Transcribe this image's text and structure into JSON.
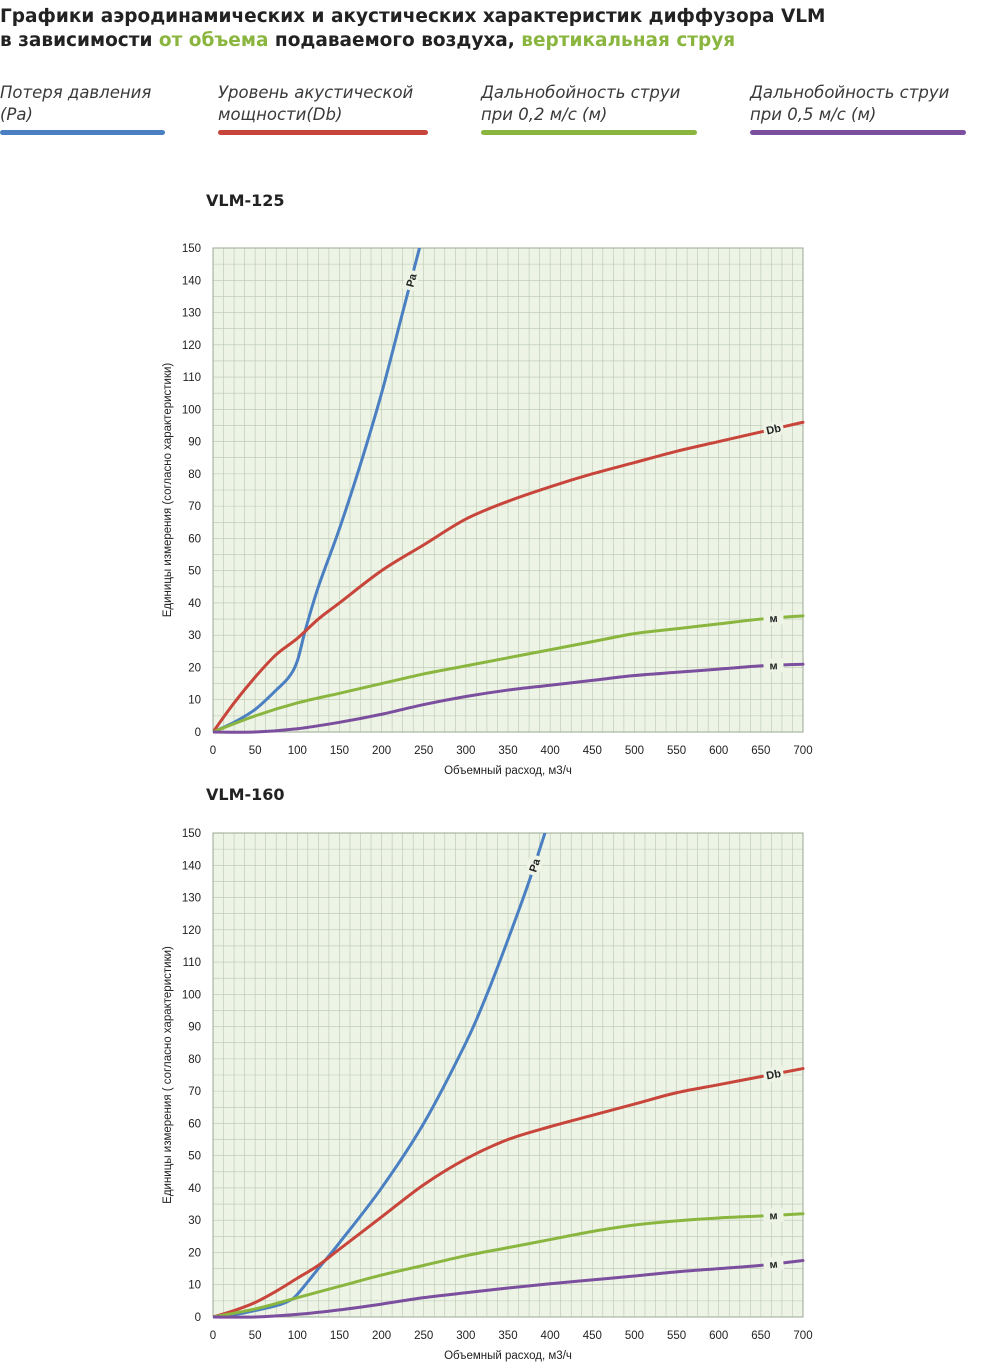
{
  "header": {
    "title_part1": "Графики аэродинамических и акустических характеристик  диффузора VLM",
    "title_part2a": "в зависимости ",
    "title_part2b": "от объема",
    "title_part2c": " подаваемого воздуха, ",
    "title_part2d": "вертикальная струя",
    "highlight_color": "#8ab63f"
  },
  "legend": [
    {
      "line1": "Потеря давления",
      "line2": "(Pa)",
      "color": "#4a7fc1"
    },
    {
      "line1": "Уровень акустической",
      "line2": "мощности(Db)",
      "color": "#c8453b"
    },
    {
      "line1": "Дальнобойность струи",
      "line2": "при 0,2 м/с (м)",
      "color": "#8ab63f"
    },
    {
      "line1": "Дальнобойность струи",
      "line2": "при 0,5 м/с (м)",
      "color": "#7b4f9e"
    }
  ],
  "chart_data": [
    {
      "type": "line",
      "title": "VLM-125",
      "xlabel": "Объемный расход, м3/ч",
      "ylabel": "Единицы измерения (согласно характеристики)",
      "xlim": [
        0,
        700
      ],
      "ylim": [
        0,
        150
      ],
      "xticks": [
        0,
        50,
        100,
        150,
        200,
        250,
        300,
        350,
        400,
        450,
        500,
        550,
        600,
        650,
        700
      ],
      "yticks": [
        0,
        10,
        20,
        30,
        40,
        50,
        60,
        70,
        80,
        90,
        100,
        110,
        120,
        130,
        140,
        150
      ],
      "grid": true,
      "series": [
        {
          "name": "Pa",
          "color": "#4a7fc1",
          "x": [
            0,
            25,
            50,
            75,
            90,
            100,
            110,
            125,
            150,
            175,
            200,
            225,
            250
          ],
          "y": [
            0,
            3,
            7,
            13,
            17,
            22,
            32,
            45,
            63,
            83,
            105,
            130,
            155
          ]
        },
        {
          "name": "Db",
          "color": "#c8453b",
          "x": [
            0,
            25,
            50,
            75,
            100,
            125,
            150,
            200,
            250,
            300,
            350,
            400,
            450,
            500,
            550,
            600,
            650,
            700
          ],
          "y": [
            0,
            9,
            17,
            24,
            29,
            35,
            40,
            50,
            58,
            66,
            71.5,
            76,
            80,
            83.5,
            87,
            90,
            93,
            96
          ]
        },
        {
          "name": "м",
          "color": "#8ab63f",
          "x": [
            0,
            50,
            100,
            150,
            200,
            250,
            300,
            350,
            400,
            450,
            500,
            550,
            600,
            650,
            700
          ],
          "y": [
            0,
            5,
            9,
            12,
            15,
            18,
            20.5,
            23,
            25.5,
            28,
            30.5,
            32,
            33.5,
            35,
            36
          ]
        },
        {
          "name": "м",
          "color": "#7b4f9e",
          "x": [
            0,
            50,
            100,
            150,
            200,
            250,
            300,
            350,
            400,
            450,
            500,
            550,
            600,
            650,
            700
          ],
          "y": [
            0,
            0,
            1,
            3,
            5.5,
            8.5,
            11,
            13,
            14.5,
            16,
            17.5,
            18.5,
            19.5,
            20.5,
            21
          ]
        }
      ]
    },
    {
      "type": "line",
      "title": "VLM-160",
      "xlabel": "Объемный расход, м3/ч",
      "ylabel": "Единицы измерения ( согласно характеристики)",
      "xlim": [
        0,
        700
      ],
      "ylim": [
        0,
        150
      ],
      "xticks": [
        0,
        50,
        100,
        150,
        200,
        250,
        300,
        350,
        400,
        450,
        500,
        550,
        600,
        650,
        700
      ],
      "yticks": [
        0,
        10,
        20,
        30,
        40,
        50,
        60,
        70,
        80,
        90,
        100,
        110,
        120,
        130,
        140,
        150
      ],
      "grid": true,
      "series": [
        {
          "name": "Pa",
          "color": "#4a7fc1",
          "x": [
            0,
            25,
            50,
            75,
            90,
            100,
            125,
            150,
            200,
            250,
            300,
            325,
            350,
            375,
            400
          ],
          "y": [
            0,
            0.7,
            2,
            3.5,
            5,
            7,
            15,
            23,
            40,
            60,
            85,
            100,
            117,
            135,
            155
          ]
        },
        {
          "name": "Db",
          "color": "#c8453b",
          "x": [
            0,
            25,
            50,
            75,
            100,
            125,
            150,
            200,
            250,
            300,
            350,
            400,
            450,
            500,
            550,
            600,
            650,
            700
          ],
          "y": [
            0,
            2,
            4.5,
            8,
            12,
            16,
            21,
            31,
            41,
            49,
            55,
            59,
            62.5,
            66,
            69.5,
            72,
            74.5,
            77
          ]
        },
        {
          "name": "м",
          "color": "#8ab63f",
          "x": [
            0,
            50,
            100,
            150,
            200,
            250,
            300,
            350,
            400,
            450,
            500,
            550,
            600,
            650,
            700
          ],
          "y": [
            0,
            2.5,
            6,
            9.5,
            13,
            16,
            19,
            21.5,
            24,
            26.5,
            28.5,
            29.8,
            30.7,
            31.3,
            32
          ]
        },
        {
          "name": "м",
          "color": "#7b4f9e",
          "x": [
            0,
            50,
            100,
            150,
            200,
            250,
            300,
            350,
            400,
            450,
            500,
            550,
            600,
            650,
            700
          ],
          "y": [
            0,
            0,
            0.8,
            2.2,
            4,
            6,
            7.5,
            9,
            10.3,
            11.5,
            12.7,
            14,
            15,
            16,
            17.5
          ]
        }
      ]
    }
  ]
}
